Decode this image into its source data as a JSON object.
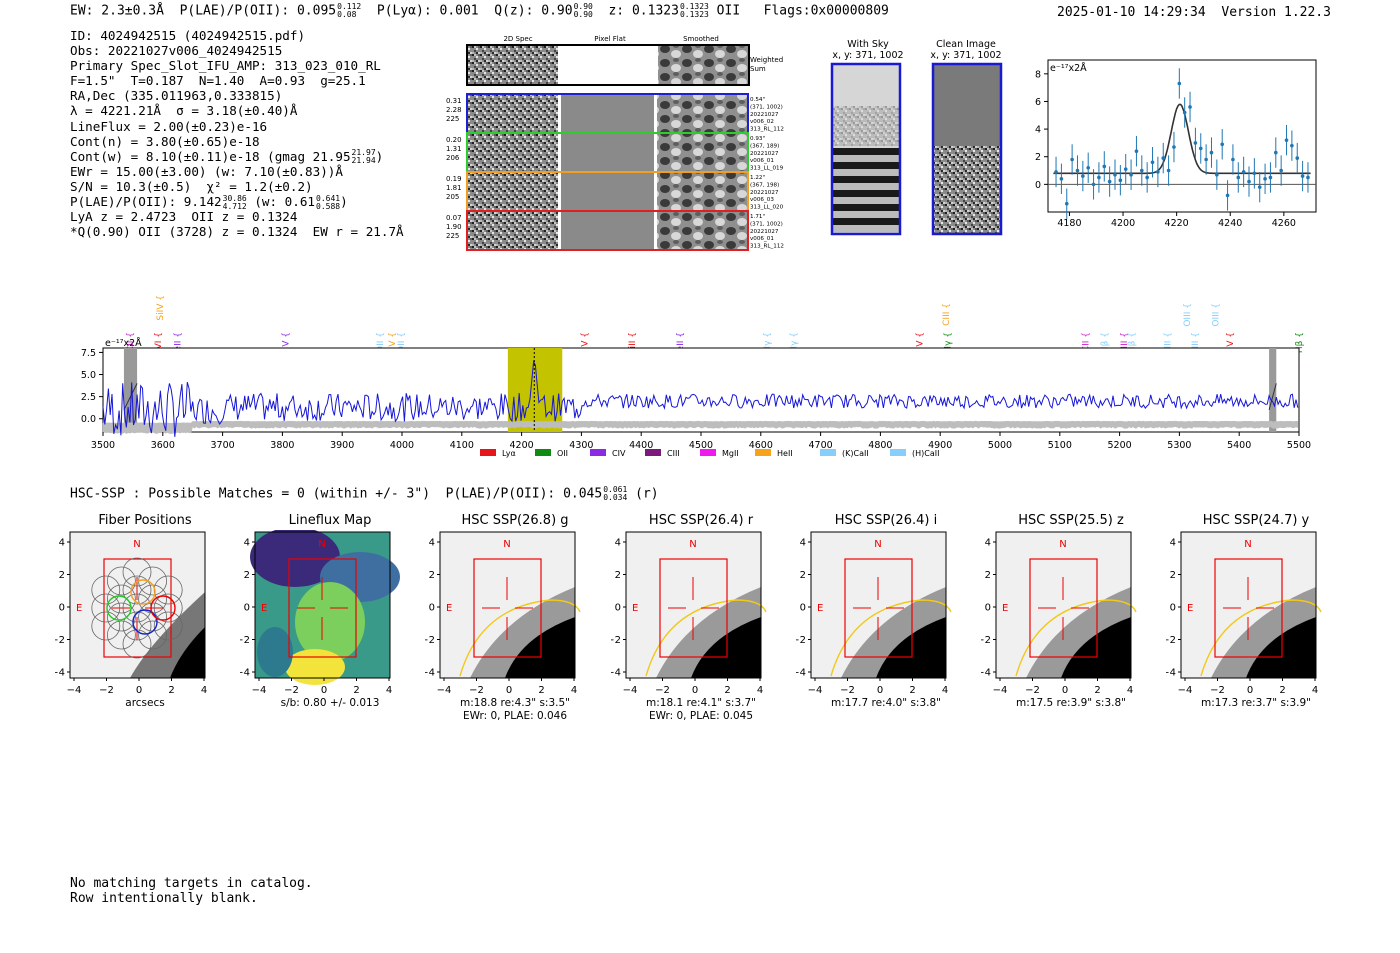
{
  "header": {
    "ew": "EW: 2.3±0.3Å",
    "plae_label": "P(LAE)/P(OII): 0.095",
    "plae_hi": "0.112",
    "plae_lo": "0.08",
    "plya": "P(Lyα): 0.001",
    "qz_label": "Q(z): 0.90",
    "qz_hi": "0.90",
    "qz_lo": "0.90",
    "z_label": "z: 0.1323",
    "z_hi": "0.1323",
    "z_lo": "0.1323",
    "z_line": "OII",
    "flags": "Flags:0x00000809",
    "datetime": "2025-01-10 14:29:34",
    "version": "Version 1.22.3"
  },
  "info": {
    "id": "ID: 4024942515 (4024942515.pdf)",
    "obs": "Obs: 20221027v006_4024942515",
    "slot": "Primary Spec_Slot_IFU_AMP: 313_023_010_RL",
    "params": "F=1.5\"  T=0.187  N=1.40  A=0.93  g=25.1",
    "radec": "RA,Dec (335.011963,0.333815)",
    "lambda": "λ = 4221.21Å  σ = 3.18(±0.40)Å",
    "lineflux": "LineFlux = 2.00(±0.23)e-16",
    "cont_n": "Cont(n) = 3.80(±0.65)e-18",
    "cont_w": "Cont(w) = 8.10(±0.11)e-18 (gmag 21.95",
    "cont_w_hi": "21.97",
    "cont_w_lo": "21.94",
    "cont_w_end": ")",
    "ewr": "EWr = 15.00(±3.00) (w: 7.10(±0.83))Å",
    "sn": "S/N = 10.3(±0.5)  χ² = 1.2(±0.2)",
    "plae": "P(LAE)/P(OII): 9.142",
    "plae_hi": "30.86",
    "plae_lo": "4.712",
    "plae_w": "(w: 0.61",
    "plae_w_hi": "0.641",
    "plae_w_lo": "0.588",
    "plae_end": ")",
    "lya_z": "LyA z = 2.4723  OII z = 0.1324",
    "q_line": "*Q(0.90) OII (3728) z = 0.1324  EW r = 21.7Å"
  },
  "cutouts": {
    "col_labels": [
      "2D Spec",
      "Pixel Flat",
      "Smoothed"
    ],
    "weighted_label_1": "Weighted",
    "weighted_label_2": "Sum",
    "rows": [
      {
        "left": [
          "0.31",
          "2.28",
          "225"
        ],
        "right": [
          "0.54\"",
          "(371, 1002)",
          "20221027",
          "v006_02",
          "313_RL_112"
        ],
        "color": "#1f1fd0"
      },
      {
        "left": [
          "0.20",
          "1.31",
          "206"
        ],
        "right": [
          "0.93\"",
          "(367, 189)",
          "20221027",
          "v006_01",
          "313_LL_019"
        ],
        "color": "#2fcc2f"
      },
      {
        "left": [
          "0.19",
          "1.81",
          "205"
        ],
        "right": [
          "1.22\"",
          "(367, 198)",
          "20221027",
          "v006_03",
          "313_LL_020"
        ],
        "color": "#f0a020"
      },
      {
        "left": [
          "0.07",
          "1.90",
          "225"
        ],
        "right": [
          "1.71\"",
          "(371, 1002)",
          "20221027",
          "v006_01",
          "313_RL_112"
        ],
        "color": "#e02020"
      }
    ]
  },
  "sky_panels": [
    {
      "title": "With Sky",
      "subtitle": "x, y: 371, 1002"
    },
    {
      "title": "Clean Image",
      "subtitle": "x, y: 371, 1002"
    }
  ],
  "chart_data": [
    {
      "type": "scatter",
      "title": "",
      "ylabel": "e⁻¹⁷x2Å",
      "xlim": [
        4172,
        4272
      ],
      "ylim": [
        -2,
        9
      ],
      "xticks": [
        4180,
        4200,
        4220,
        4240,
        4260
      ],
      "yticks": [
        0,
        2,
        4,
        6,
        8
      ],
      "x": [
        4175,
        4177,
        4179,
        4181,
        4183,
        4185,
        4187,
        4189,
        4191,
        4193,
        4195,
        4197,
        4199,
        4201,
        4203,
        4205,
        4207,
        4209,
        4211,
        4213,
        4215,
        4217,
        4219,
        4221,
        4223,
        4225,
        4227,
        4229,
        4231,
        4233,
        4235,
        4237,
        4239,
        4241,
        4243,
        4245,
        4247,
        4249,
        4251,
        4253,
        4255,
        4257,
        4259,
        4261,
        4263,
        4265,
        4267,
        4269
      ],
      "y": [
        0.9,
        0.4,
        -1.4,
        1.8,
        1.0,
        0.6,
        1.2,
        0.0,
        0.5,
        1.3,
        0.2,
        0.7,
        0.3,
        1.1,
        0.7,
        2.4,
        1.0,
        0.5,
        1.6,
        0.9,
        1.9,
        1.0,
        2.7,
        7.3,
        5.2,
        5.6,
        3.0,
        2.6,
        1.8,
        2.3,
        0.7,
        2.9,
        -0.8,
        1.8,
        0.5,
        0.9,
        0.2,
        0.8,
        -0.2,
        0.4,
        0.5,
        2.3,
        1.0,
        3.2,
        2.8,
        1.9,
        0.6,
        0.5
      ],
      "err": 1.1,
      "fit": {
        "amplitude": 5.0,
        "center": 4221.2,
        "sigma": 3.2,
        "baseline": 0.8
      }
    },
    {
      "type": "line",
      "title": "",
      "ylabel": "e⁻¹⁷x2Å",
      "xlim": [
        3500,
        5500
      ],
      "ylim": [
        -1.5,
        8
      ],
      "xticks": [
        3500,
        3600,
        3700,
        3800,
        3900,
        4000,
        4100,
        4200,
        4300,
        4400,
        4500,
        4600,
        4700,
        4800,
        4900,
        5000,
        5100,
        5200,
        5300,
        5400,
        5500
      ],
      "yticks": [
        0.0,
        2.5,
        5.0,
        7.5
      ],
      "highlight_range": [
        4177,
        4268
      ],
      "masked_ranges": [
        [
          3535,
          3557
        ],
        [
          5450,
          5462
        ]
      ],
      "peak_wavelength": 4221.2,
      "legend": [
        {
          "label": "Lyα",
          "color": "#e8141c"
        },
        {
          "label": "OII",
          "color": "#118a11"
        },
        {
          "label": "CIV",
          "color": "#8a2be2"
        },
        {
          "label": "CIII",
          "color": "#7a1a7a"
        },
        {
          "label": "MgII",
          "color": "#ee1aee"
        },
        {
          "label": "HeII",
          "color": "#f5a31a"
        },
        {
          "label": "(K)CaII",
          "color": "#87cefa"
        },
        {
          "label": "(H)CaII",
          "color": "#87cefa"
        }
      ],
      "lines": [
        {
          "name": "CII",
          "wave": 3550,
          "color": "#cc22cc",
          "tier": 0
        },
        {
          "name": "SiIV",
          "wave": 3600,
          "color": "#f5a31a",
          "tier": 2
        },
        {
          "name": "OVI",
          "wave": 3597,
          "color": "#e8141c",
          "tier": 0
        },
        {
          "name": "HeII",
          "wave": 3630,
          "color": "#8a2be2",
          "tier": 0
        },
        {
          "name": "SiIV",
          "wave": 3810,
          "color": "#8a2be2",
          "tier": 0
        },
        {
          "name": "OII",
          "wave": 3968,
          "color": "#87cefa",
          "tier": 0
        },
        {
          "name": "CIV",
          "wave": 3988,
          "color": "#f5a31a",
          "tier": 0
        },
        {
          "name": "OII",
          "wave": 4003,
          "color": "#87cefa",
          "tier": 0
        },
        {
          "name": "NV",
          "wave": 4310,
          "color": "#e8141c",
          "tier": 0
        },
        {
          "name": "SiII",
          "wave": 4390,
          "color": "#e8141c",
          "tier": 0
        },
        {
          "name": "HeII",
          "wave": 4470,
          "color": "#8a2be2",
          "tier": 0
        },
        {
          "name": "Hγ",
          "wave": 4615,
          "color": "#87cefa",
          "tier": 0
        },
        {
          "name": "Hγ",
          "wave": 4660,
          "color": "#87cefa",
          "tier": 0
        },
        {
          "name": "SiIV",
          "wave": 4870,
          "color": "#e8141c",
          "tier": 0
        },
        {
          "name": "CIII",
          "wave": 4915,
          "color": "#f5a31a",
          "tier": 1
        },
        {
          "name": "Hγ",
          "wave": 4917,
          "color": "#118a11",
          "tier": 0
        },
        {
          "name": "CII",
          "wave": 5148,
          "color": "#cc22cc",
          "tier": 0
        },
        {
          "name": "Hβ",
          "wave": 5180,
          "color": "#87cefa",
          "tier": 0
        },
        {
          "name": "CIII",
          "wave": 5212,
          "color": "#cc22cc",
          "tier": 0
        },
        {
          "name": "Hβ",
          "wave": 5225,
          "color": "#87cefa",
          "tier": 0
        },
        {
          "name": "OIII",
          "wave": 5285,
          "color": "#87cefa",
          "tier": 0
        },
        {
          "name": "OIII",
          "wave": 5318,
          "color": "#87cefa",
          "tier": 1
        },
        {
          "name": "OIII",
          "wave": 5331,
          "color": "#87cefa",
          "tier": 0
        },
        {
          "name": "OIII",
          "wave": 5365,
          "color": "#87cefa",
          "tier": 1
        },
        {
          "name": "CIV",
          "wave": 5390,
          "color": "#e8141c",
          "tier": 0
        },
        {
          "name": "Hβ",
          "wave": 5505,
          "color": "#118a11",
          "tier": 0
        }
      ]
    }
  ],
  "hsc": {
    "summary": "HSC-SSP : Possible Matches = 0 (within +/- 3\")  P(LAE)/P(OII): 0.045",
    "summary_hi": "0.061",
    "summary_lo": "0.034",
    "summary_end": "(r)",
    "axis_ticks": [
      "4",
      "2",
      "0",
      "−2",
      "−4"
    ],
    "x_ticks": [
      "−4",
      "−2",
      "0",
      "2",
      "4"
    ],
    "compass_n": "N",
    "compass_e": "E",
    "panels": [
      {
        "title": "Fiber Positions",
        "foot1": "arcsecs",
        "foot2": ""
      },
      {
        "title": "Lineflux Map",
        "foot1": "s/b: 0.80 +/- 0.013",
        "foot2": ""
      },
      {
        "title": "HSC SSP(26.8) g",
        "foot1": "m:18.8  re:4.3\"  s:3.5\"",
        "foot2": "EWr: 0, PLAE: 0.046"
      },
      {
        "title": "HSC SSP(26.4) r",
        "foot1": "m:18.1  re:4.1\"  s:3.7\"",
        "foot2": "EWr: 0, PLAE: 0.045"
      },
      {
        "title": "HSC SSP(26.4) i",
        "foot1": "m:17.7  re:4.0\"  s:3.8\"",
        "foot2": ""
      },
      {
        "title": "HSC SSP(25.5) z",
        "foot1": "m:17.5  re:3.9\"  s:3.8\"",
        "foot2": ""
      },
      {
        "title": "HSC SSP(24.7) y",
        "foot1": "m:17.3  re:3.7\"  s:3.9\"",
        "foot2": ""
      }
    ]
  },
  "footer": {
    "line1": "No matching targets in catalog.",
    "line2": "Row intentionally blank."
  }
}
